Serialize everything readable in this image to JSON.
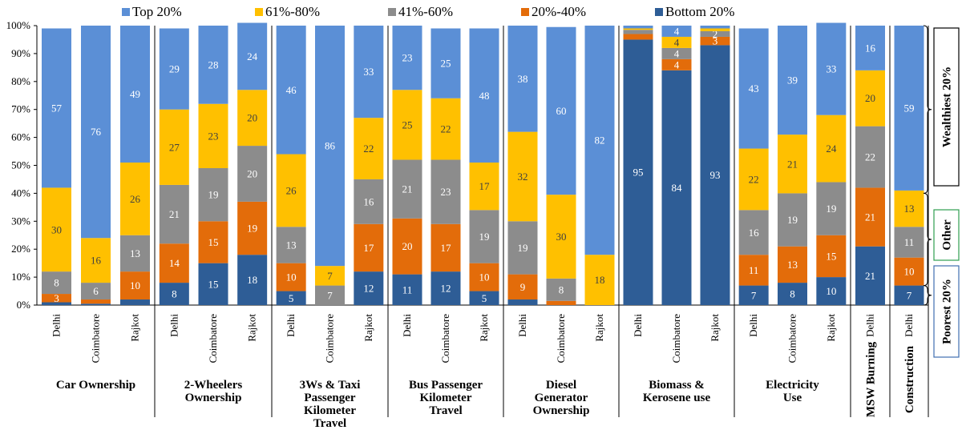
{
  "chart_data": {
    "type": "bar",
    "stacked": true,
    "percent_axis": true,
    "ylim": [
      0,
      100
    ],
    "yticks": [
      "0%",
      "10%",
      "20%",
      "30%",
      "40%",
      "50%",
      "60%",
      "70%",
      "80%",
      "90%",
      "100%"
    ],
    "legend_position": "top",
    "series": [
      {
        "name": "Bottom 20%",
        "color": "#2e5d96"
      },
      {
        "name": "20%-40%",
        "color": "#e36c0a"
      },
      {
        "name": "41%-60%",
        "color": "#8c8c8c"
      },
      {
        "name": "61%-80%",
        "color": "#ffc000"
      },
      {
        "name": "Top 20%",
        "color": "#5b8fd6"
      }
    ],
    "legend_order": [
      "Top 20%",
      "61%-80%",
      "41%-60%",
      "20%-40%",
      "Bottom 20%"
    ],
    "groups": [
      {
        "label": [
          "Car Ownership"
        ],
        "bars": [
          {
            "category": "Delhi",
            "values": [
              1,
              3,
              8,
              30,
              57
            ],
            "labels": [
              "",
              "3",
              "8",
              "30",
              "57"
            ]
          },
          {
            "category": "Coimbatore",
            "values": [
              0.5,
              1.5,
              6,
              16,
              76
            ],
            "labels": [
              "",
              "",
              "6",
              "16",
              "76"
            ]
          },
          {
            "category": "Rajkot",
            "values": [
              2,
              10,
              13,
              26,
              49
            ],
            "labels": [
              "",
              "10",
              "13",
              "26",
              "49"
            ]
          }
        ]
      },
      {
        "label": [
          "2-Wheelers",
          "Ownership"
        ],
        "bars": [
          {
            "category": "Delhi",
            "values": [
              8,
              14,
              21,
              27,
              29
            ],
            "labels": [
              "8",
              "14",
              "21",
              "27",
              "29"
            ]
          },
          {
            "category": "Coimbatore",
            "values": [
              15,
              15,
              19,
              23,
              28
            ],
            "labels": [
              "15",
              "15",
              "19",
              "23",
              "28"
            ]
          },
          {
            "category": "Rajkot",
            "values": [
              18,
              19,
              20,
              20,
              24
            ],
            "labels": [
              "18",
              "19",
              "20",
              "20",
              "24"
            ]
          }
        ]
      },
      {
        "label": [
          "3Ws & Taxi",
          "Passenger",
          "Kilometer",
          "Travel"
        ],
        "bars": [
          {
            "category": "Delhi",
            "values": [
              5,
              10,
              13,
              26,
              46
            ],
            "labels": [
              "5",
              "10",
              "13",
              "26",
              "46"
            ]
          },
          {
            "category": "Coimbatore",
            "values": [
              0,
              0,
              7,
              7,
              86
            ],
            "labels": [
              "",
              "",
              "7",
              "7",
              "86"
            ]
          },
          {
            "category": "Rajkot",
            "values": [
              12,
              17,
              16,
              22,
              33
            ],
            "labels": [
              "12",
              "17",
              "16",
              "22",
              "33"
            ]
          }
        ]
      },
      {
        "label": [
          "Bus Passenger",
          "Kilometer",
          "Travel"
        ],
        "bars": [
          {
            "category": "Delhi",
            "values": [
              11,
              20,
              21,
              25,
              23
            ],
            "labels": [
              "11",
              "20",
              "21",
              "25",
              "23"
            ]
          },
          {
            "category": "Coimbatore",
            "values": [
              12,
              17,
              23,
              22,
              25
            ],
            "labels": [
              "12",
              "17",
              "23",
              "22",
              "25"
            ]
          },
          {
            "category": "Rajkot",
            "values": [
              5,
              10,
              19,
              17,
              48
            ],
            "labels": [
              "5",
              "10",
              "19",
              "17",
              "48"
            ]
          }
        ]
      },
      {
        "label": [
          "Diesel",
          "Generator",
          "Ownership"
        ],
        "bars": [
          {
            "category": "Delhi",
            "values": [
              2,
              9,
              19,
              32,
              38
            ],
            "labels": [
              "",
              "9",
              "19",
              "32",
              "38"
            ]
          },
          {
            "category": "Coimbatore",
            "values": [
              0,
              1.5,
              8,
              30,
              60
            ],
            "labels": [
              "",
              "",
              "8",
              "30",
              "60"
            ]
          },
          {
            "category": "Rajkot",
            "values": [
              0,
              0,
              0,
              18,
              82
            ],
            "labels": [
              "",
              "",
              "",
              "18",
              "82"
            ]
          }
        ]
      },
      {
        "label": [
          "Biomass &",
          "Kerosene use"
        ],
        "bars": [
          {
            "category": "Delhi",
            "values": [
              95,
              2,
              1.5,
              0.5,
              1
            ],
            "labels": [
              "95",
              "",
              "",
              "",
              ""
            ]
          },
          {
            "category": "Coimbatore",
            "values": [
              84,
              4,
              4,
              4,
              4
            ],
            "labels": [
              "84",
              "4",
              "4",
              "4",
              "4"
            ]
          },
          {
            "category": "Rajkot",
            "values": [
              93,
              3,
              2,
              1,
              1
            ],
            "labels": [
              "93",
              "3",
              "2",
              "",
              ""
            ]
          }
        ]
      },
      {
        "label": [
          "Electricity",
          "Use"
        ],
        "bars": [
          {
            "category": "Delhi",
            "values": [
              7,
              11,
              16,
              22,
              43
            ],
            "labels": [
              "7",
              "11",
              "16",
              "22",
              "43"
            ]
          },
          {
            "category": "Coimbatore",
            "values": [
              8,
              13,
              19,
              21,
              39
            ],
            "labels": [
              "8",
              "13",
              "19",
              "21",
              "39"
            ]
          },
          {
            "category": "Rajkot",
            "values": [
              10,
              15,
              19,
              24,
              33
            ],
            "labels": [
              "10",
              "15",
              "19",
              "24",
              "33"
            ]
          }
        ]
      },
      {
        "label": [
          "MSW Burning"
        ],
        "vertical": true,
        "bars": [
          {
            "category": "Delhi",
            "values": [
              21,
              21,
              22,
              20,
              16
            ],
            "labels": [
              "21",
              "21",
              "22",
              "20",
              "16"
            ]
          }
        ]
      },
      {
        "label": [
          "Construction"
        ],
        "vertical": true,
        "bars": [
          {
            "category": "Delhi",
            "values": [
              7,
              10,
              11,
              13,
              59
            ],
            "labels": [
              "7",
              "10",
              "11",
              "13",
              "59"
            ]
          }
        ]
      }
    ],
    "side_labels": [
      {
        "text": "Wealthiest 20%",
        "border": "#000000",
        "from": 40,
        "to": 100
      },
      {
        "text": "Other",
        "border": "#2e9e4f",
        "from": 7,
        "to": 40
      },
      {
        "text": "Poorest 20%",
        "border": "#3f6fb0",
        "from": 0,
        "to": 7
      }
    ]
  }
}
